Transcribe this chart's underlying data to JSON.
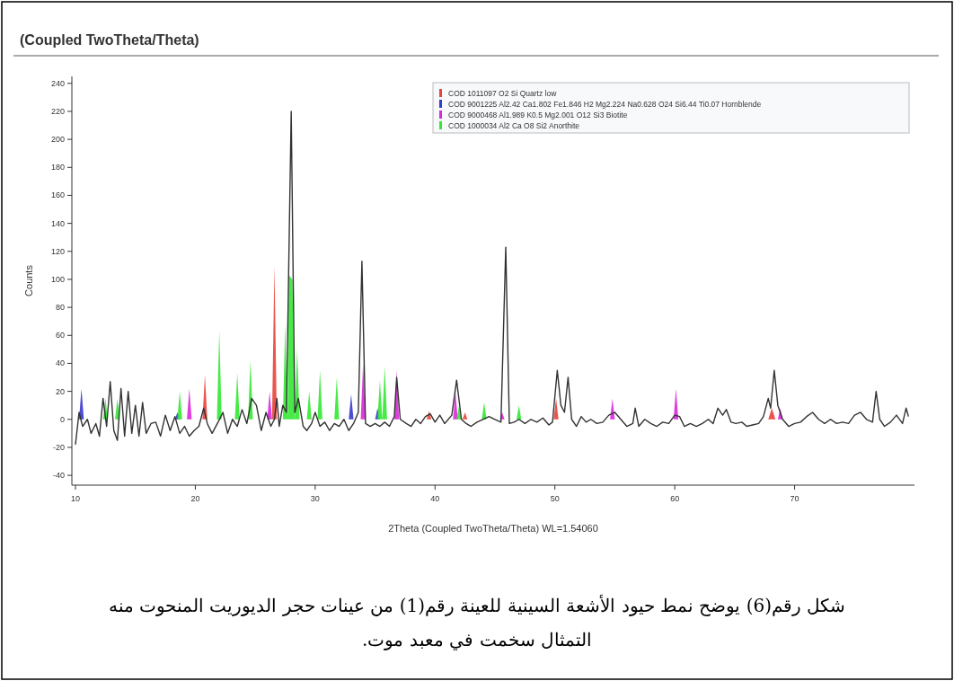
{
  "chart_data": {
    "type": "line",
    "title": "(Coupled TwoTheta/Theta)",
    "xlabel": "2Theta (Coupled TwoTheta/Theta) WL=1.54060",
    "ylabel": "Counts",
    "xlim": [
      9.7,
      80
    ],
    "ylim": [
      -47,
      245
    ],
    "xticks": [
      10,
      20,
      30,
      40,
      50,
      60,
      70
    ],
    "yticks": [
      -40,
      -20,
      0,
      20,
      40,
      60,
      80,
      100,
      120,
      140,
      160,
      180,
      200,
      220,
      240
    ],
    "legend": "top right",
    "annotations": [
      "شكل رقم(6) يوضح نمط حيود الأشعة السينية للعينة رقم(1) من عينات حجر الديوريت المنحوت منه التمثال سخمت في معبد موت."
    ],
    "series": [
      {
        "name": "COD 1011097 O2 Si Quartz low",
        "type": "area",
        "color": "#e8423a",
        "x": [
          20.6,
          20.8,
          21.0,
          26.4,
          26.6,
          26.8,
          39.3,
          39.5,
          39.7,
          42.3,
          42.5,
          42.7,
          49.9,
          50.1,
          50.3,
          67.8,
          68.1,
          68.4
        ],
        "values": [
          0,
          32,
          0,
          0,
          110,
          0,
          0,
          6,
          0,
          0,
          5,
          0,
          0,
          15,
          0,
          0,
          8,
          0
        ]
      },
      {
        "name": "COD 9001225 Al2.42 Ca1.802 Fe1.846 H2 Mg2.224 Na0.628 O24 Si6.44 Ti0.07 Hornblende",
        "type": "area",
        "color": "#3a3acc",
        "x": [
          10.3,
          10.5,
          10.7,
          18.3,
          18.5,
          18.7,
          32.8,
          33.0,
          33.2,
          35.0,
          35.2,
          35.4
        ],
        "values": [
          0,
          22,
          0,
          0,
          5,
          0,
          0,
          18,
          0,
          0,
          8,
          0
        ]
      },
      {
        "name": "COD 9000468 Al1.989 K0.5 Mg2.001 O12 Si3 Biotite",
        "type": "area",
        "color": "#d929d9",
        "x": [
          19.3,
          19.5,
          19.7,
          26.0,
          26.2,
          26.4,
          33.8,
          34.0,
          34.2,
          36.6,
          36.8,
          37.0,
          41.5,
          41.7,
          41.9,
          45.4,
          45.6,
          45.8,
          54.6,
          54.8,
          55.0,
          59.9,
          60.1,
          60.3,
          68.6,
          68.8,
          69.0
        ],
        "values": [
          0,
          22,
          0,
          0,
          20,
          0,
          0,
          40,
          0,
          0,
          35,
          0,
          0,
          20,
          0,
          0,
          5,
          0,
          0,
          15,
          0,
          0,
          22,
          0,
          0,
          8,
          0
        ]
      },
      {
        "name": "COD 1000034 Al2 Ca O8 Si2 Anorthite",
        "type": "area",
        "color": "#33e833",
        "x": [
          12.3,
          12.5,
          12.7,
          13.3,
          13.5,
          13.7,
          18.5,
          18.7,
          18.9,
          21.8,
          22.0,
          22.2,
          23.3,
          23.5,
          23.7,
          24.4,
          24.6,
          24.8,
          27.3,
          27.5,
          27.7,
          27.8,
          28.1,
          28.3,
          28.5,
          28.7,
          29.3,
          29.5,
          29.7,
          30.2,
          30.4,
          30.6,
          31.6,
          31.8,
          32.0,
          35.2,
          35.4,
          35.6,
          35.8,
          36.0,
          41.8,
          42.0,
          42.2,
          43.9,
          44.1,
          44.3,
          46.8,
          47.0,
          47.2
        ],
        "values": [
          0,
          15,
          0,
          0,
          15,
          0,
          0,
          20,
          0,
          0,
          63,
          0,
          0,
          33,
          0,
          0,
          42,
          0,
          0,
          68,
          0,
          103,
          100,
          0,
          50,
          0,
          0,
          20,
          0,
          0,
          35,
          0,
          0,
          30,
          0,
          0,
          28,
          0,
          38,
          0,
          0,
          10,
          0,
          0,
          12,
          0,
          0,
          10,
          0
        ]
      },
      {
        "color": "#333333",
        "x": [
          10.0,
          10.3,
          10.6,
          11.0,
          11.3,
          11.7,
          12.0,
          12.3,
          12.6,
          12.9,
          13.2,
          13.5,
          13.8,
          14.1,
          14.4,
          14.7,
          15.0,
          15.3,
          15.6,
          15.9,
          16.3,
          16.7,
          17.1,
          17.5,
          17.9,
          18.3,
          18.7,
          19.1,
          19.5,
          19.9,
          20.3,
          20.7,
          21.0,
          21.4,
          21.9,
          22.3,
          22.7,
          23.1,
          23.5,
          23.9,
          24.3,
          24.7,
          25.1,
          25.5,
          25.9,
          26.3,
          26.6,
          26.8,
          27.0,
          27.3,
          27.6,
          28.0,
          28.3,
          28.6,
          29.0,
          29.3,
          29.7,
          30.0,
          30.4,
          30.8,
          31.2,
          31.6,
          32.0,
          32.4,
          32.8,
          33.2,
          33.6,
          33.9,
          34.2,
          34.6,
          35.0,
          35.4,
          35.8,
          36.2,
          36.6,
          36.8,
          37.1,
          37.6,
          38.0,
          38.4,
          38.8,
          39.2,
          39.6,
          40.0,
          40.4,
          40.8,
          41.4,
          41.8,
          42.2,
          42.6,
          43.0,
          43.5,
          44.0,
          44.5,
          45.0,
          45.5,
          45.9,
          46.2,
          46.6,
          47.0,
          47.5,
          48.0,
          48.5,
          49.0,
          49.5,
          49.8,
          50.2,
          50.5,
          50.8,
          51.1,
          51.4,
          51.8,
          52.2,
          52.6,
          53.0,
          53.5,
          54.0,
          54.5,
          55.0,
          55.5,
          56.0,
          56.5,
          56.7,
          57.0,
          57.5,
          58.0,
          58.5,
          59.0,
          59.5,
          60.0,
          60.4,
          60.8,
          61.3,
          61.8,
          62.3,
          62.8,
          63.2,
          63.6,
          64.0,
          64.3,
          64.7,
          65.1,
          65.6,
          66.0,
          66.5,
          67.0,
          67.4,
          67.8,
          68.0,
          68.3,
          68.6,
          69.0,
          69.5,
          70.0,
          70.5,
          71.0,
          71.5,
          72.0,
          72.5,
          73.0,
          73.5,
          74.0,
          74.5,
          75.0,
          75.5,
          76.0,
          76.5,
          76.8,
          77.1,
          77.5,
          78.0,
          78.5,
          79.0,
          79.3,
          79.5
        ],
        "values": [
          -18,
          5,
          -5,
          0,
          -10,
          -3,
          -12,
          15,
          -5,
          27,
          -8,
          -15,
          22,
          -12,
          20,
          -10,
          10,
          -12,
          12,
          -10,
          -3,
          -2,
          -12,
          3,
          -8,
          2,
          -10,
          -5,
          -12,
          -8,
          -5,
          8,
          -3,
          -10,
          -2,
          5,
          -10,
          0,
          -5,
          7,
          -3,
          15,
          10,
          -8,
          5,
          -5,
          0,
          15,
          -5,
          10,
          5,
          220,
          5,
          15,
          -5,
          -8,
          -3,
          5,
          -5,
          -2,
          -8,
          -3,
          -5,
          0,
          -8,
          -3,
          5,
          113,
          -3,
          -5,
          -3,
          -5,
          -2,
          -5,
          2,
          30,
          0,
          -3,
          -5,
          0,
          -3,
          2,
          4,
          -2,
          3,
          -3,
          3,
          28,
          0,
          -3,
          -5,
          -2,
          0,
          2,
          0,
          -2,
          123,
          -3,
          -2,
          0,
          -3,
          0,
          -2,
          1,
          -4,
          -2,
          35,
          10,
          5,
          30,
          0,
          -5,
          2,
          -2,
          0,
          -3,
          -2,
          3,
          5,
          0,
          -5,
          -3,
          8,
          -5,
          0,
          -3,
          -5,
          -2,
          -3,
          3,
          2,
          -5,
          -3,
          -5,
          -3,
          0,
          -3,
          8,
          3,
          7,
          -2,
          -3,
          -2,
          -5,
          -4,
          -3,
          2,
          15,
          8,
          35,
          10,
          0,
          -5,
          -3,
          -2,
          2,
          5,
          0,
          -3,
          0,
          -3,
          -2,
          -3,
          3,
          5,
          0,
          -2,
          20,
          0,
          -5,
          -2,
          3,
          -3,
          8,
          2
        ]
      }
    ]
  }
}
